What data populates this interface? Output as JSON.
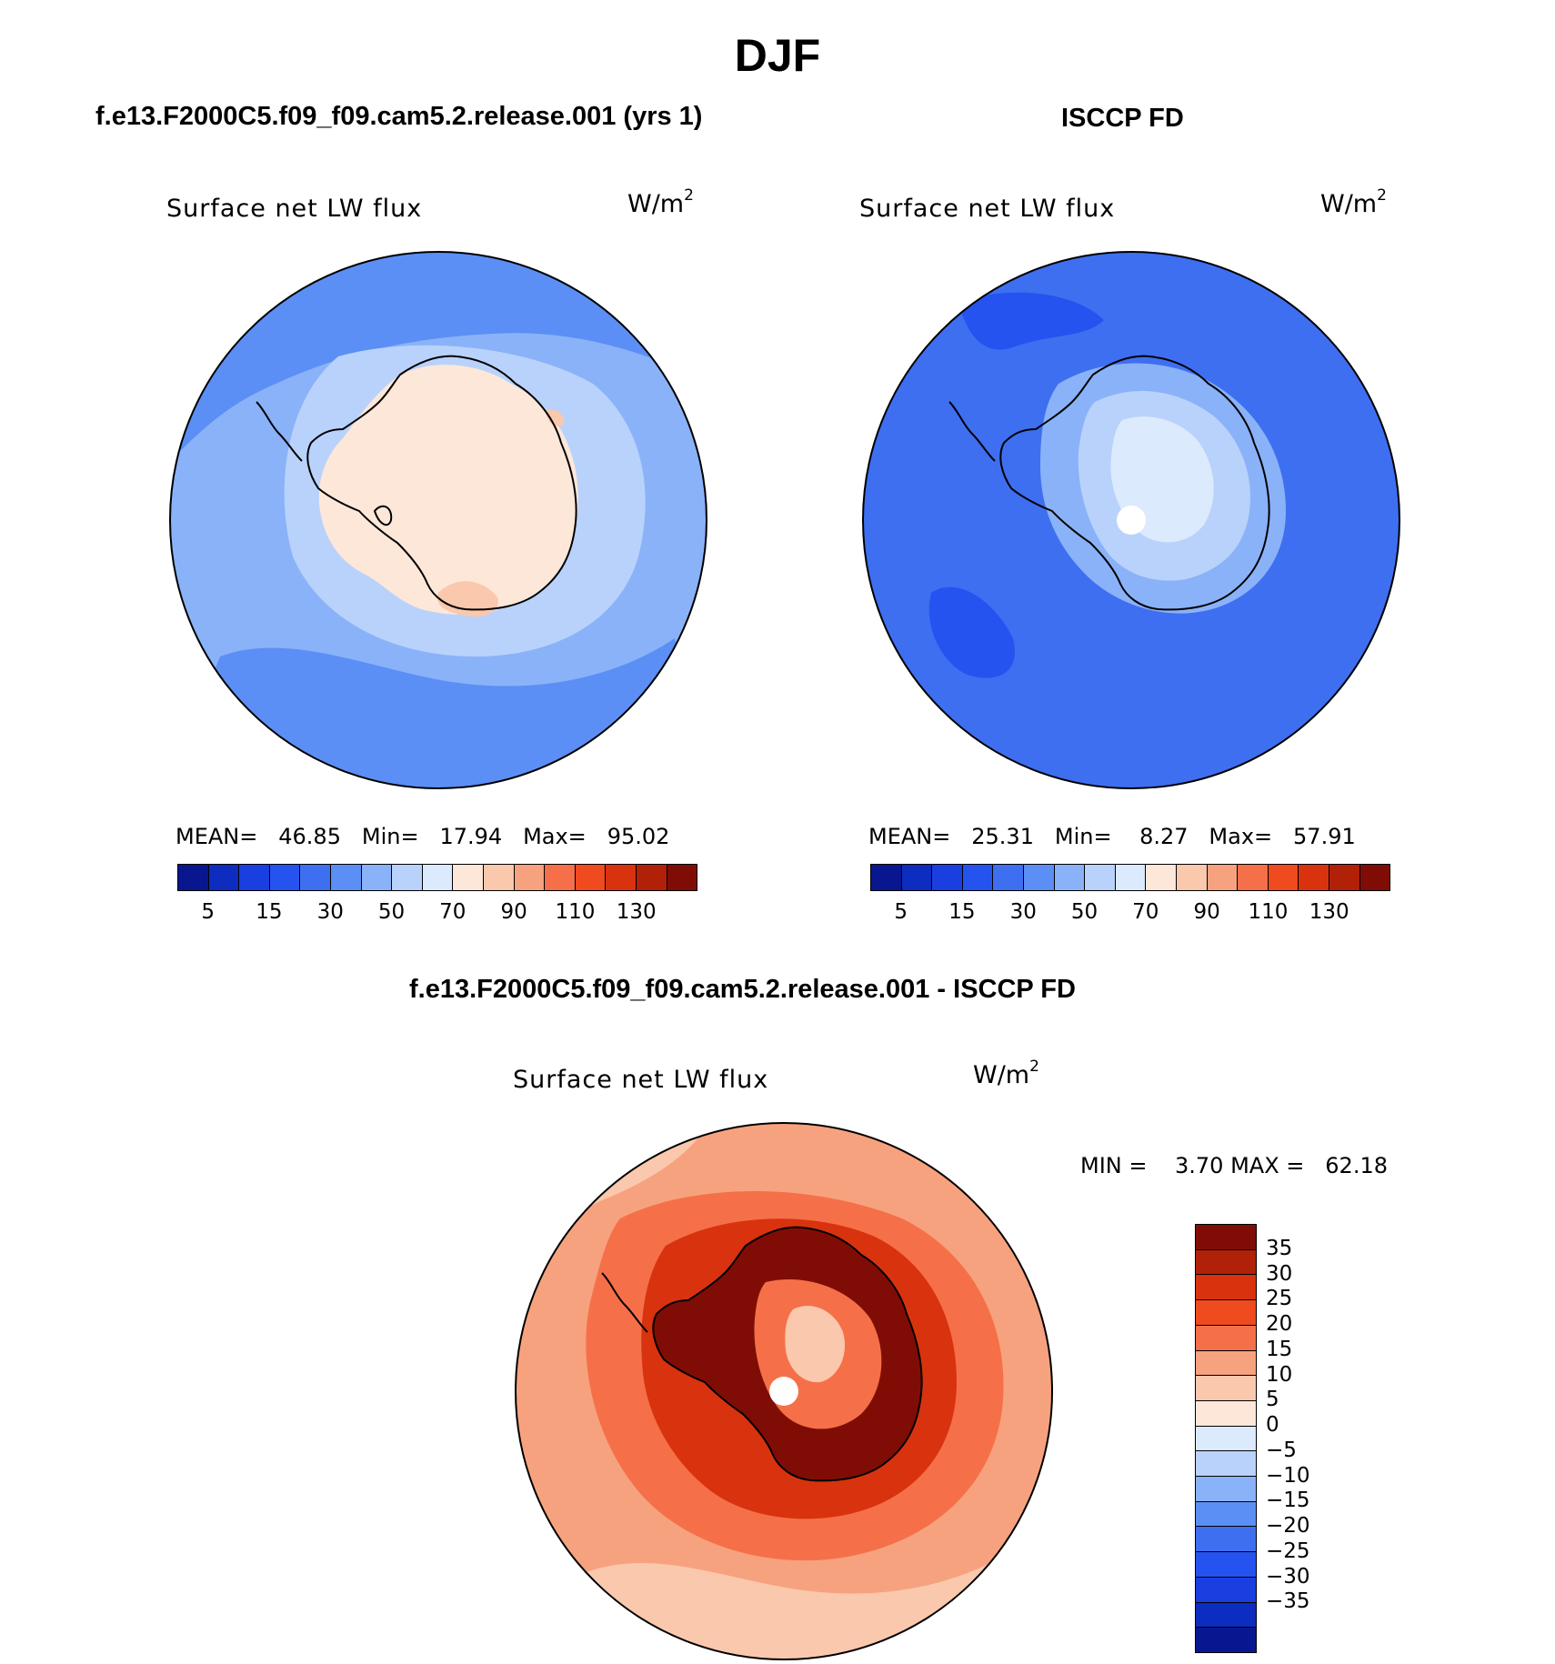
{
  "figure": {
    "season": "DJF",
    "model_title": "f.e13.F2000C5.f09_f09.cam5.2.release.001 (yrs 1)",
    "obs_title": "ISCCP FD",
    "diff_title": "f.e13.F2000C5.f09_f09.cam5.2.release.001 - ISCCP FD"
  },
  "panels": {
    "model": {
      "variable": "Surface net LW flux",
      "unit_base": "W/m",
      "unit_exp": "2",
      "mean_label": "MEAN=",
      "mean": "46.85",
      "min_label": "Min=",
      "min": "17.94",
      "max_label": "Max=",
      "max": "95.02"
    },
    "obs": {
      "variable": "Surface net LW flux",
      "unit_base": "W/m",
      "unit_exp": "2",
      "mean_label": "MEAN=",
      "mean": "25.31",
      "min_label": "Min=",
      "min": "8.27",
      "max_label": "Max=",
      "max": "57.91"
    },
    "diff": {
      "variable": "Surface net LW flux",
      "unit_base": "W/m",
      "unit_exp": "2",
      "min_label": "MIN =",
      "min": "3.70",
      "max_label": "MAX =",
      "max": "62.18"
    }
  },
  "colorbars": {
    "abs_colors": [
      "#08178f",
      "#0d2cc0",
      "#1a3fe0",
      "#2553f0",
      "#3e6ff0",
      "#5b8ff5",
      "#8ab2f8",
      "#b9d2fb",
      "#dceafd",
      "#fde7d9",
      "#fac8ad",
      "#f7a27f",
      "#f57049",
      "#f04a1f",
      "#d8330e",
      "#b12108",
      "#800d05"
    ],
    "abs_tick_labels": [
      "5",
      "15",
      "30",
      "50",
      "70",
      "90",
      "110",
      "130"
    ],
    "diff_colors": [
      "#800d05",
      "#b12108",
      "#d8330e",
      "#f04a1f",
      "#f57049",
      "#f7a27f",
      "#fac8ad",
      "#fde7d9",
      "#dceafd",
      "#b9d2fb",
      "#8ab2f8",
      "#5b8ff5",
      "#3e6ff0",
      "#2553f0",
      "#1a3fe0",
      "#0d2cc0",
      "#08178f"
    ],
    "diff_tick_labels": [
      "35",
      "30",
      "25",
      "20",
      "15",
      "10",
      "5",
      "0",
      "−5",
      "−10",
      "−15",
      "−20",
      "−25",
      "−30",
      "−35"
    ]
  },
  "map_data": {
    "projection": "south-polar-stereographic",
    "region": "Antarctica / Southern Ocean",
    "palette": {
      "ocean_model": "#8ab2f8",
      "ocean_model_dark": "#5b8ff5",
      "ocean_model_light": "#b9d2fb",
      "land_model": "#fde7d9",
      "land_model_alt": "#fac8ad",
      "ocean_obs": "#3e6ff0",
      "ocean_obs_dark": "#2553f0",
      "land_obs": "#8ab2f8",
      "land_obs_light": "#b9d2fb",
      "land_obs_core": "#dceafd",
      "ocean_diff": "#f7a27f",
      "ocean_diff_mid": "#f57049",
      "ocean_diff_light": "#fac8ad",
      "land_diff": "#800d05",
      "land_diff_mid": "#d8330e",
      "land_diff_inner": "#f57049",
      "coastline": "#000000",
      "pole_mask": "#ffffff"
    }
  }
}
